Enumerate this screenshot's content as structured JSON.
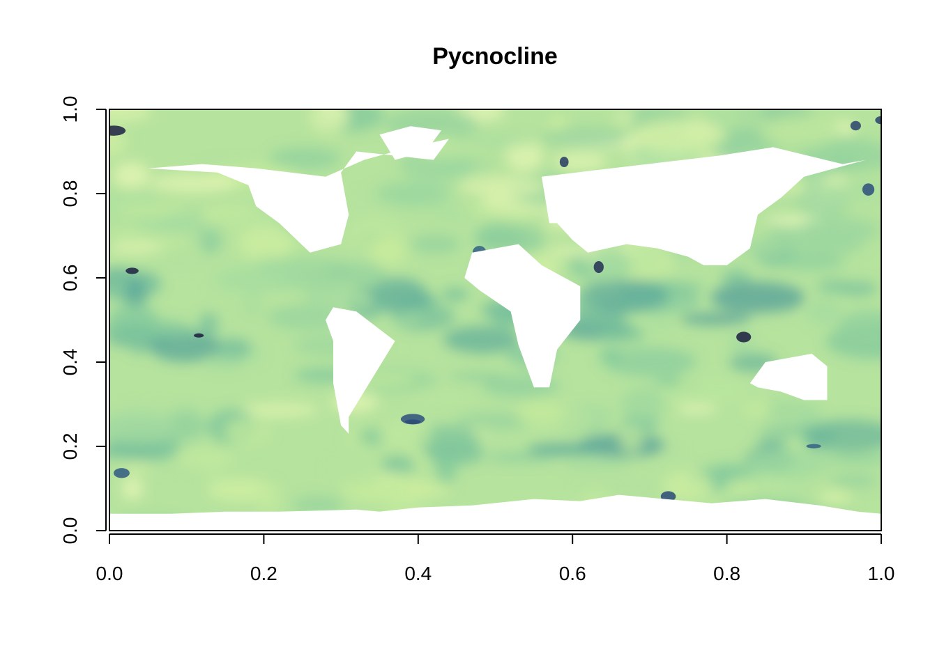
{
  "chart_data": {
    "type": "heatmap",
    "title": "Pycnocline",
    "xlabel": "",
    "ylabel": "",
    "xlim": [
      0,
      1
    ],
    "ylim": [
      0,
      1
    ],
    "x_ticks": [
      0.0,
      0.2,
      0.4,
      0.6,
      0.8,
      1.0
    ],
    "y_ticks": [
      0.0,
      0.2,
      0.4,
      0.6,
      0.8,
      1.0
    ],
    "x_tick_labels": [
      "0.0",
      "0.2",
      "0.4",
      "0.6",
      "0.8",
      "1.0"
    ],
    "y_tick_labels": [
      "0.0",
      "0.2",
      "0.4",
      "0.6",
      "0.8",
      "1.0"
    ],
    "grid": false,
    "legend": "none",
    "colormap": [
      "#f2fac0",
      "#c9ec9c",
      "#a6dca0",
      "#7fc69c",
      "#5aa89b",
      "#3f7f93",
      "#2e4f7c",
      "#1a1a3a"
    ],
    "missing_color": "#ffffff",
    "raster_extent": {
      "x": [
        0.0,
        1.0
      ],
      "y": [
        0.0,
        1.0
      ]
    },
    "land_mask_regions": [
      {
        "name": "North America",
        "points": [
          [
            0.05,
            0.86
          ],
          [
            0.12,
            0.87
          ],
          [
            0.19,
            0.86
          ],
          [
            0.28,
            0.84
          ],
          [
            0.33,
            0.88
          ],
          [
            0.39,
            0.91
          ],
          [
            0.44,
            0.93
          ],
          [
            0.42,
            0.88
          ],
          [
            0.32,
            0.9
          ],
          [
            0.3,
            0.85
          ],
          [
            0.31,
            0.75
          ],
          [
            0.3,
            0.68
          ],
          [
            0.26,
            0.66
          ],
          [
            0.22,
            0.73
          ],
          [
            0.19,
            0.77
          ],
          [
            0.18,
            0.82
          ],
          [
            0.14,
            0.85
          ]
        ]
      },
      {
        "name": "Greenland",
        "points": [
          [
            0.35,
            0.94
          ],
          [
            0.39,
            0.96
          ],
          [
            0.43,
            0.95
          ],
          [
            0.41,
            0.9
          ],
          [
            0.37,
            0.88
          ]
        ]
      },
      {
        "name": "South America",
        "points": [
          [
            0.29,
            0.53
          ],
          [
            0.32,
            0.52
          ],
          [
            0.37,
            0.45
          ],
          [
            0.35,
            0.39
          ],
          [
            0.33,
            0.33
          ],
          [
            0.31,
            0.27
          ],
          [
            0.31,
            0.23
          ],
          [
            0.3,
            0.25
          ],
          [
            0.29,
            0.35
          ],
          [
            0.29,
            0.45
          ],
          [
            0.28,
            0.5
          ]
        ]
      },
      {
        "name": "Africa",
        "points": [
          [
            0.47,
            0.66
          ],
          [
            0.53,
            0.68
          ],
          [
            0.56,
            0.63
          ],
          [
            0.61,
            0.58
          ],
          [
            0.61,
            0.5
          ],
          [
            0.58,
            0.43
          ],
          [
            0.57,
            0.34
          ],
          [
            0.55,
            0.34
          ],
          [
            0.53,
            0.44
          ],
          [
            0.52,
            0.52
          ],
          [
            0.48,
            0.57
          ],
          [
            0.46,
            0.6
          ]
        ]
      },
      {
        "name": "Eurasia",
        "points": [
          [
            0.57,
            0.73
          ],
          [
            0.56,
            0.84
          ],
          [
            0.65,
            0.86
          ],
          [
            0.79,
            0.89
          ],
          [
            0.86,
            0.91
          ],
          [
            0.95,
            0.87
          ],
          [
            0.98,
            0.88
          ],
          [
            0.9,
            0.84
          ],
          [
            0.87,
            0.79
          ],
          [
            0.84,
            0.75
          ],
          [
            0.83,
            0.67
          ],
          [
            0.8,
            0.63
          ],
          [
            0.77,
            0.63
          ],
          [
            0.75,
            0.65
          ],
          [
            0.71,
            0.67
          ],
          [
            0.67,
            0.68
          ],
          [
            0.62,
            0.66
          ],
          [
            0.6,
            0.69
          ],
          [
            0.58,
            0.73
          ]
        ]
      },
      {
        "name": "Australia",
        "points": [
          [
            0.83,
            0.35
          ],
          [
            0.85,
            0.4
          ],
          [
            0.88,
            0.41
          ],
          [
            0.91,
            0.42
          ],
          [
            0.93,
            0.39
          ],
          [
            0.93,
            0.31
          ],
          [
            0.9,
            0.31
          ],
          [
            0.87,
            0.33
          ],
          [
            0.84,
            0.34
          ]
        ]
      },
      {
        "name": "Antarctica",
        "points": [
          [
            0.0,
            0.04
          ],
          [
            0.03,
            0.04
          ],
          [
            0.08,
            0.04
          ],
          [
            0.15,
            0.045
          ],
          [
            0.22,
            0.045
          ],
          [
            0.32,
            0.05
          ],
          [
            0.35,
            0.045
          ],
          [
            0.4,
            0.055
          ],
          [
            0.47,
            0.06
          ],
          [
            0.55,
            0.075
          ],
          [
            0.61,
            0.07
          ],
          [
            0.66,
            0.085
          ],
          [
            0.72,
            0.075
          ],
          [
            0.78,
            0.065
          ],
          [
            0.85,
            0.075
          ],
          [
            0.92,
            0.06
          ],
          [
            0.97,
            0.045
          ],
          [
            1.0,
            0.04
          ],
          [
            1.0,
            0.0
          ],
          [
            0.0,
            0.0
          ]
        ]
      }
    ]
  }
}
